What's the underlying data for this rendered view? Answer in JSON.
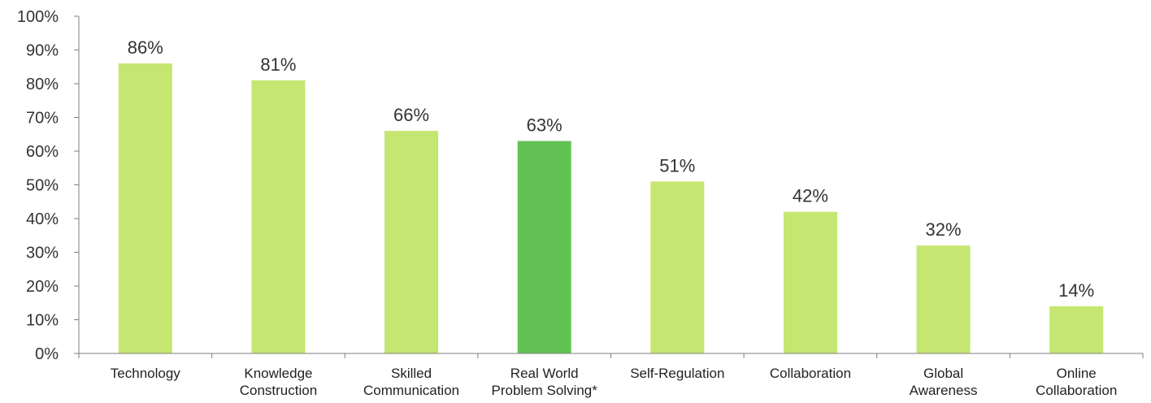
{
  "chart_data": {
    "type": "bar",
    "categories": [
      "Technology",
      "Knowledge Construction",
      "Skilled Communication",
      "Real World Problem Solving*",
      "Self-Regulation",
      "Collaboration",
      "Global Awareness",
      "Online Collaboration"
    ],
    "category_lines": [
      [
        "Technology"
      ],
      [
        "Knowledge",
        "Construction"
      ],
      [
        "Skilled",
        "Communication"
      ],
      [
        "Real World",
        "Problem Solving*"
      ],
      [
        "Self-Regulation"
      ],
      [
        "Collaboration"
      ],
      [
        "Global",
        "Awareness"
      ],
      [
        "Online",
        "Collaboration"
      ]
    ],
    "values": [
      86,
      81,
      66,
      63,
      51,
      42,
      32,
      14
    ],
    "data_labels": [
      "86%",
      "81%",
      "66%",
      "63%",
      "51%",
      "42%",
      "32%",
      "14%"
    ],
    "highlight_index": 3,
    "ylim": [
      0,
      100
    ],
    "yticks": [
      0,
      10,
      20,
      30,
      40,
      50,
      60,
      70,
      80,
      90,
      100
    ],
    "ytick_labels": [
      "0%",
      "10%",
      "20%",
      "30%",
      "40%",
      "50%",
      "60%",
      "70%",
      "80%",
      "90%",
      "100%"
    ],
    "grid": false,
    "title": "",
    "xlabel": "",
    "ylabel": "",
    "colors": {
      "bar": "#c5e670",
      "highlight": "#62c254",
      "axis": "#7f7f7f"
    }
  }
}
